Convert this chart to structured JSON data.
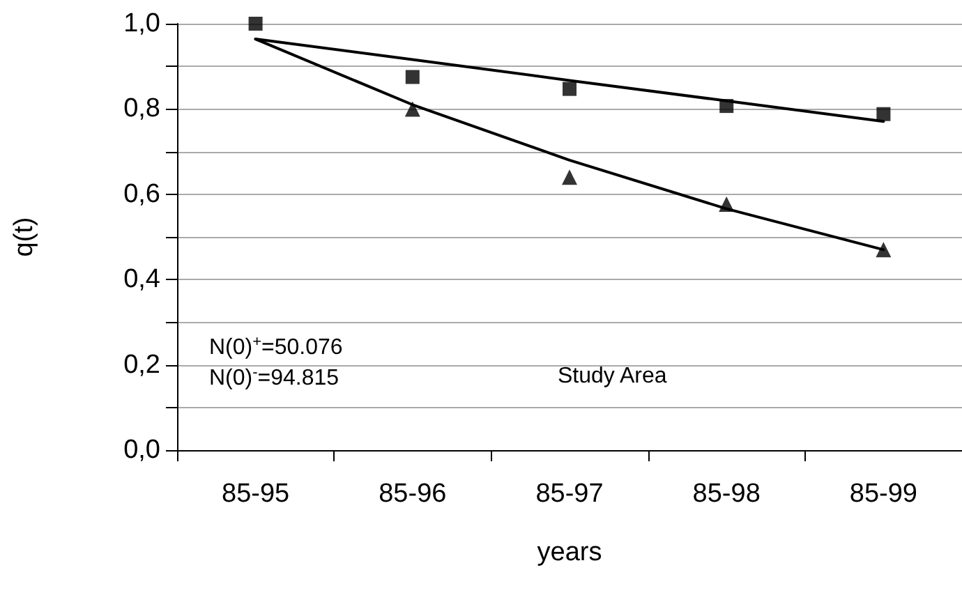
{
  "chart_data": {
    "type": "scatter",
    "xlabel": "years",
    "ylabel": "q(t)",
    "categories": [
      "85-95",
      "85-96",
      "85-97",
      "85-98",
      "85-99"
    ],
    "series": [
      {
        "color": "#000000",
        "marker": "square",
        "values": [
          1.0,
          0.875,
          0.847,
          0.807,
          0.788
        ]
      },
      {
        "color": "#000000",
        "marker": "triangle",
        "values": [
          null,
          0.8,
          0.64,
          0.577,
          0.47
        ]
      },
      {
        "type": "line",
        "color": "#000000",
        "marker": "none",
        "line_style": "solid",
        "values": [
          0.964,
          0.916,
          0.867,
          0.819,
          0.771
        ]
      },
      {
        "type": "line",
        "color": "#000000",
        "marker": "none",
        "line_style": "solid",
        "values": [
          0.964,
          0.81,
          0.68,
          0.566,
          0.47
        ]
      }
    ],
    "ylim": [
      0,
      1
    ],
    "yticks": [
      {
        "value": 0,
        "label": "0,0"
      },
      {
        "value": 0.1,
        "label": null
      },
      {
        "value": 0.2,
        "label": "0,2"
      },
      {
        "value": 0.3,
        "label": null
      },
      {
        "value": 0.4,
        "label": "0,4"
      },
      {
        "value": 0.5,
        "label": null
      },
      {
        "value": 0.6,
        "label": "0,6"
      },
      {
        "value": 0.7,
        "label": null
      },
      {
        "value": 0.8,
        "label": "0,8"
      },
      {
        "value": 0.9,
        "label": null
      },
      {
        "value": 1,
        "label": "1,0"
      }
    ],
    "grid": "y",
    "annotations": [
      "N(0)$^{+}$=50.076",
      "N(0)$^{-}$=94.815",
      "Study Area"
    ]
  }
}
